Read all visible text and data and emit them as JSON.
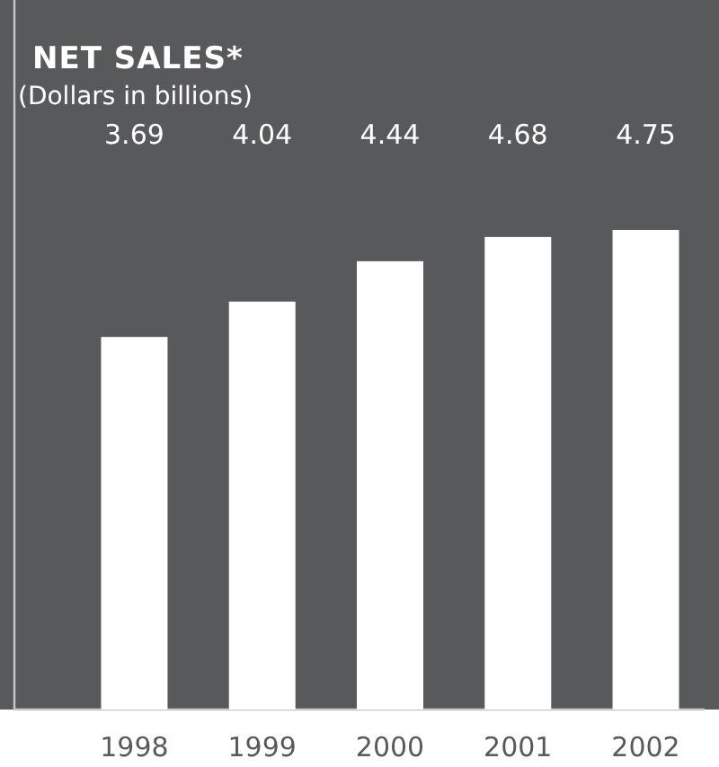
{
  "chart_data": {
    "type": "bar",
    "title": "NET SALES*",
    "subtitle": "(Dollars in billions)",
    "categories": [
      "1998",
      "1999",
      "2000",
      "2001",
      "2002"
    ],
    "values": [
      3.69,
      4.04,
      4.44,
      4.68,
      4.75
    ],
    "color": "#ffffff",
    "data_labels": true
  }
}
